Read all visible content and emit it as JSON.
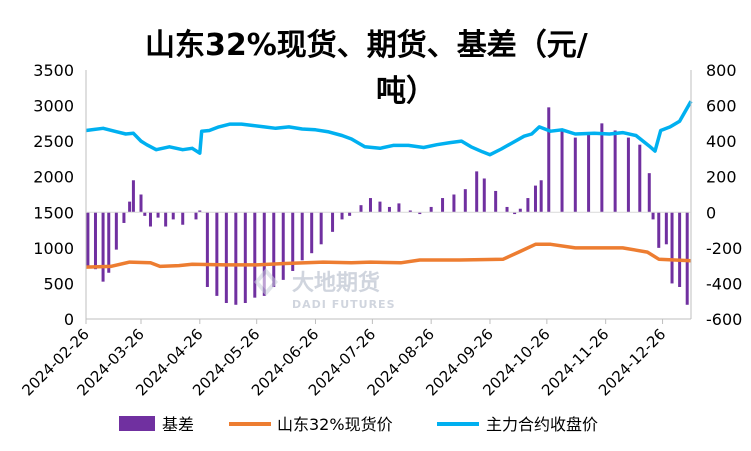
{
  "chart_data": {
    "type": "bar+line",
    "title_lines": [
      "山东32%现货、期货、基差（元/",
      "吨）"
    ],
    "left_axis": {
      "min": 0,
      "max": 3500,
      "step": 500,
      "ticks": [
        "0",
        "500",
        "1000",
        "1500",
        "2000",
        "2500",
        "3000",
        "3500"
      ]
    },
    "right_axis": {
      "min": -600,
      "max": 800,
      "step": 200,
      "ticks": [
        "-600",
        "-400",
        "-200",
        "0",
        "200",
        "400",
        "600",
        "800"
      ]
    },
    "dates": [
      "2024-02-26",
      "2024-03-26",
      "2024-04-26",
      "2024-05-26",
      "2024-06-26",
      "2024-07-26",
      "2024-08-26",
      "2024-09-26",
      "2024-10-26",
      "2024-11-26",
      "2024-12-26"
    ],
    "x_range": [
      "2024-02-26",
      "2025-01-10"
    ],
    "legend": [
      "基差",
      "山东32%现货价",
      "主力合约收盘价"
    ],
    "watermark": {
      "cn": "大地期货",
      "en": "DADI FUTURES"
    },
    "colors": {
      "basis": "#7030A0",
      "spot": "#ED7D31",
      "futures": "#00B0F0"
    },
    "series": [
      {
        "name": "主力合约收盘价",
        "axis": "left",
        "points": [
          [
            "2024-02-26",
            2650
          ],
          [
            "2024-03-06",
            2680
          ],
          [
            "2024-03-12",
            2640
          ],
          [
            "2024-03-18",
            2600
          ],
          [
            "2024-03-22",
            2610
          ],
          [
            "2024-03-26",
            2500
          ],
          [
            "2024-03-29",
            2450
          ],
          [
            "2024-04-03",
            2380
          ],
          [
            "2024-04-10",
            2420
          ],
          [
            "2024-04-17",
            2380
          ],
          [
            "2024-04-22",
            2400
          ],
          [
            "2024-04-26",
            2330
          ],
          [
            "2024-04-27",
            2640
          ],
          [
            "2024-05-01",
            2650
          ],
          [
            "2024-05-06",
            2700
          ],
          [
            "2024-05-12",
            2740
          ],
          [
            "2024-05-18",
            2740
          ],
          [
            "2024-05-24",
            2720
          ],
          [
            "2024-05-30",
            2700
          ],
          [
            "2024-06-05",
            2680
          ],
          [
            "2024-06-12",
            2700
          ],
          [
            "2024-06-19",
            2670
          ],
          [
            "2024-06-26",
            2660
          ],
          [
            "2024-07-03",
            2630
          ],
          [
            "2024-07-10",
            2580
          ],
          [
            "2024-07-15",
            2530
          ],
          [
            "2024-07-22",
            2420
          ],
          [
            "2024-07-30",
            2400
          ],
          [
            "2024-08-06",
            2440
          ],
          [
            "2024-08-14",
            2440
          ],
          [
            "2024-08-22",
            2410
          ],
          [
            "2024-08-29",
            2450
          ],
          [
            "2024-09-05",
            2480
          ],
          [
            "2024-09-11",
            2500
          ],
          [
            "2024-09-16",
            2420
          ],
          [
            "2024-09-22",
            2350
          ],
          [
            "2024-09-26",
            2310
          ],
          [
            "2024-10-02",
            2390
          ],
          [
            "2024-10-08",
            2480
          ],
          [
            "2024-10-14",
            2570
          ],
          [
            "2024-10-18",
            2600
          ],
          [
            "2024-10-22",
            2700
          ],
          [
            "2024-10-28",
            2640
          ],
          [
            "2024-11-03",
            2660
          ],
          [
            "2024-11-10",
            2600
          ],
          [
            "2024-11-20",
            2610
          ],
          [
            "2024-11-28",
            2600
          ],
          [
            "2024-12-05",
            2620
          ],
          [
            "2024-12-12",
            2580
          ],
          [
            "2024-12-19",
            2430
          ],
          [
            "2024-12-22",
            2360
          ],
          [
            "2024-12-25",
            2650
          ],
          [
            "2024-12-30",
            2700
          ],
          [
            "2025-01-04",
            2780
          ],
          [
            "2025-01-10",
            3060
          ]
        ]
      },
      {
        "name": "山东32%现货价",
        "axis": "left",
        "points": [
          [
            "2024-02-26",
            730
          ],
          [
            "2024-03-10",
            740
          ],
          [
            "2024-03-20",
            800
          ],
          [
            "2024-03-31",
            790
          ],
          [
            "2024-04-05",
            740
          ],
          [
            "2024-04-15",
            750
          ],
          [
            "2024-04-22",
            770
          ],
          [
            "2024-05-10",
            760
          ],
          [
            "2024-05-26",
            760
          ],
          [
            "2024-06-10",
            780
          ],
          [
            "2024-06-30",
            800
          ],
          [
            "2024-07-15",
            790
          ],
          [
            "2024-07-25",
            800
          ],
          [
            "2024-08-10",
            790
          ],
          [
            "2024-08-20",
            830
          ],
          [
            "2024-09-10",
            830
          ],
          [
            "2024-10-03",
            840
          ],
          [
            "2024-10-12",
            950
          ],
          [
            "2024-10-20",
            1050
          ],
          [
            "2024-10-28",
            1050
          ],
          [
            "2024-11-10",
            1000
          ],
          [
            "2024-12-05",
            1000
          ],
          [
            "2024-12-18",
            940
          ],
          [
            "2024-12-24",
            840
          ],
          [
            "2025-01-10",
            820
          ]
        ]
      },
      {
        "name": "基差",
        "axis": "right",
        "points": [
          [
            "2024-02-27",
            -300
          ],
          [
            "2024-03-02",
            -320
          ],
          [
            "2024-03-06",
            -390
          ],
          [
            "2024-03-09",
            -340
          ],
          [
            "2024-03-13",
            -210
          ],
          [
            "2024-03-17",
            -60
          ],
          [
            "2024-03-20",
            60
          ],
          [
            "2024-03-22",
            180
          ],
          [
            "2024-03-26",
            100
          ],
          [
            "2024-03-28",
            -20
          ],
          [
            "2024-03-31",
            -80
          ],
          [
            "2024-04-04",
            -30
          ],
          [
            "2024-04-08",
            -80
          ],
          [
            "2024-04-12",
            -40
          ],
          [
            "2024-04-17",
            -70
          ],
          [
            "2024-04-24",
            -40
          ],
          [
            "2024-04-26",
            10
          ],
          [
            "2024-04-30",
            -420
          ],
          [
            "2024-05-05",
            -470
          ],
          [
            "2024-05-10",
            -510
          ],
          [
            "2024-05-15",
            -520
          ],
          [
            "2024-05-20",
            -510
          ],
          [
            "2024-05-25",
            -480
          ],
          [
            "2024-05-30",
            -470
          ],
          [
            "2024-06-04",
            -420
          ],
          [
            "2024-06-09",
            -380
          ],
          [
            "2024-06-14",
            -330
          ],
          [
            "2024-06-19",
            -270
          ],
          [
            "2024-06-24",
            -230
          ],
          [
            "2024-06-29",
            -180
          ],
          [
            "2024-07-05",
            -110
          ],
          [
            "2024-07-10",
            -40
          ],
          [
            "2024-07-14",
            -20
          ],
          [
            "2024-07-17",
            0
          ],
          [
            "2024-07-20",
            40
          ],
          [
            "2024-07-25",
            80
          ],
          [
            "2024-07-30",
            60
          ],
          [
            "2024-08-04",
            30
          ],
          [
            "2024-08-09",
            50
          ],
          [
            "2024-08-15",
            10
          ],
          [
            "2024-08-20",
            -10
          ],
          [
            "2024-08-26",
            30
          ],
          [
            "2024-09-01",
            80
          ],
          [
            "2024-09-07",
            100
          ],
          [
            "2024-09-13",
            130
          ],
          [
            "2024-09-19",
            230
          ],
          [
            "2024-09-23",
            190
          ],
          [
            "2024-09-29",
            120
          ],
          [
            "2024-10-05",
            30
          ],
          [
            "2024-10-09",
            -10
          ],
          [
            "2024-10-12",
            20
          ],
          [
            "2024-10-16",
            80
          ],
          [
            "2024-10-20",
            150
          ],
          [
            "2024-10-23",
            180
          ],
          [
            "2024-10-27",
            590
          ],
          [
            "2024-11-03",
            470
          ],
          [
            "2024-11-10",
            420
          ],
          [
            "2024-11-17",
            450
          ],
          [
            "2024-11-24",
            500
          ],
          [
            "2024-12-01",
            460
          ],
          [
            "2024-12-08",
            420
          ],
          [
            "2024-12-14",
            380
          ],
          [
            "2024-12-19",
            220
          ],
          [
            "2024-12-21",
            -40
          ],
          [
            "2024-12-24",
            -200
          ],
          [
            "2024-12-28",
            -180
          ],
          [
            "2024-12-31",
            -400
          ],
          [
            "2025-01-04",
            -420
          ],
          [
            "2025-01-08",
            -520
          ]
        ]
      }
    ]
  }
}
